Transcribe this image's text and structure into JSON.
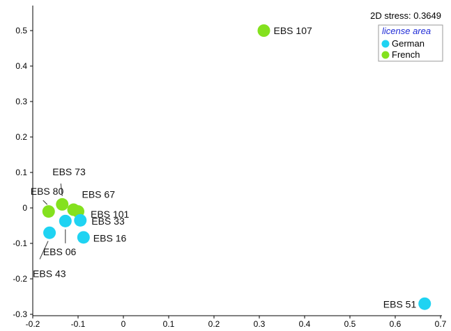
{
  "chart_data": {
    "type": "scatter",
    "stress_text": "2D stress: 0.3649",
    "legend": {
      "title": "license area",
      "items": [
        {
          "name": "German",
          "color": "#1fd3f2"
        },
        {
          "name": "French",
          "color": "#84e11e"
        }
      ]
    },
    "xlim": [
      -0.2,
      0.7
    ],
    "ylim": [
      -0.3,
      0.55
    ],
    "x_ticks": [
      "-0.2",
      "-0.1",
      "0",
      "0.1",
      "0.2",
      "0.3",
      "0.4",
      "0.5",
      "0.6",
      "0.7"
    ],
    "y_ticks": [
      "0.5",
      "0.4",
      "0.3",
      "0.2",
      "0.1",
      "0",
      "-0.1",
      "-0.2",
      "-0.3"
    ],
    "points": [
      {
        "label": "EBS 107",
        "x": 0.31,
        "y": 0.5,
        "group": "French"
      },
      {
        "label": "EBS 73",
        "x": -0.135,
        "y": 0.01,
        "group": "French"
      },
      {
        "label": "EBS 80",
        "x": -0.165,
        "y": -0.01,
        "group": "French"
      },
      {
        "label": "EBS 67",
        "x": -0.11,
        "y": -0.005,
        "group": "French"
      },
      {
        "label": "EBS 101",
        "x": -0.1,
        "y": -0.01,
        "group": "French"
      },
      {
        "label": "EBS 33",
        "x": -0.095,
        "y": -0.035,
        "group": "German"
      },
      {
        "label": "EBS 06",
        "x": -0.128,
        "y": -0.037,
        "group": "German"
      },
      {
        "label": "EBS 43",
        "x": -0.163,
        "y": -0.07,
        "group": "German"
      },
      {
        "label": "EBS 16",
        "x": -0.088,
        "y": -0.083,
        "group": "German"
      },
      {
        "label": "EBS 51",
        "x": 0.665,
        "y": -0.27,
        "group": "German"
      }
    ]
  }
}
